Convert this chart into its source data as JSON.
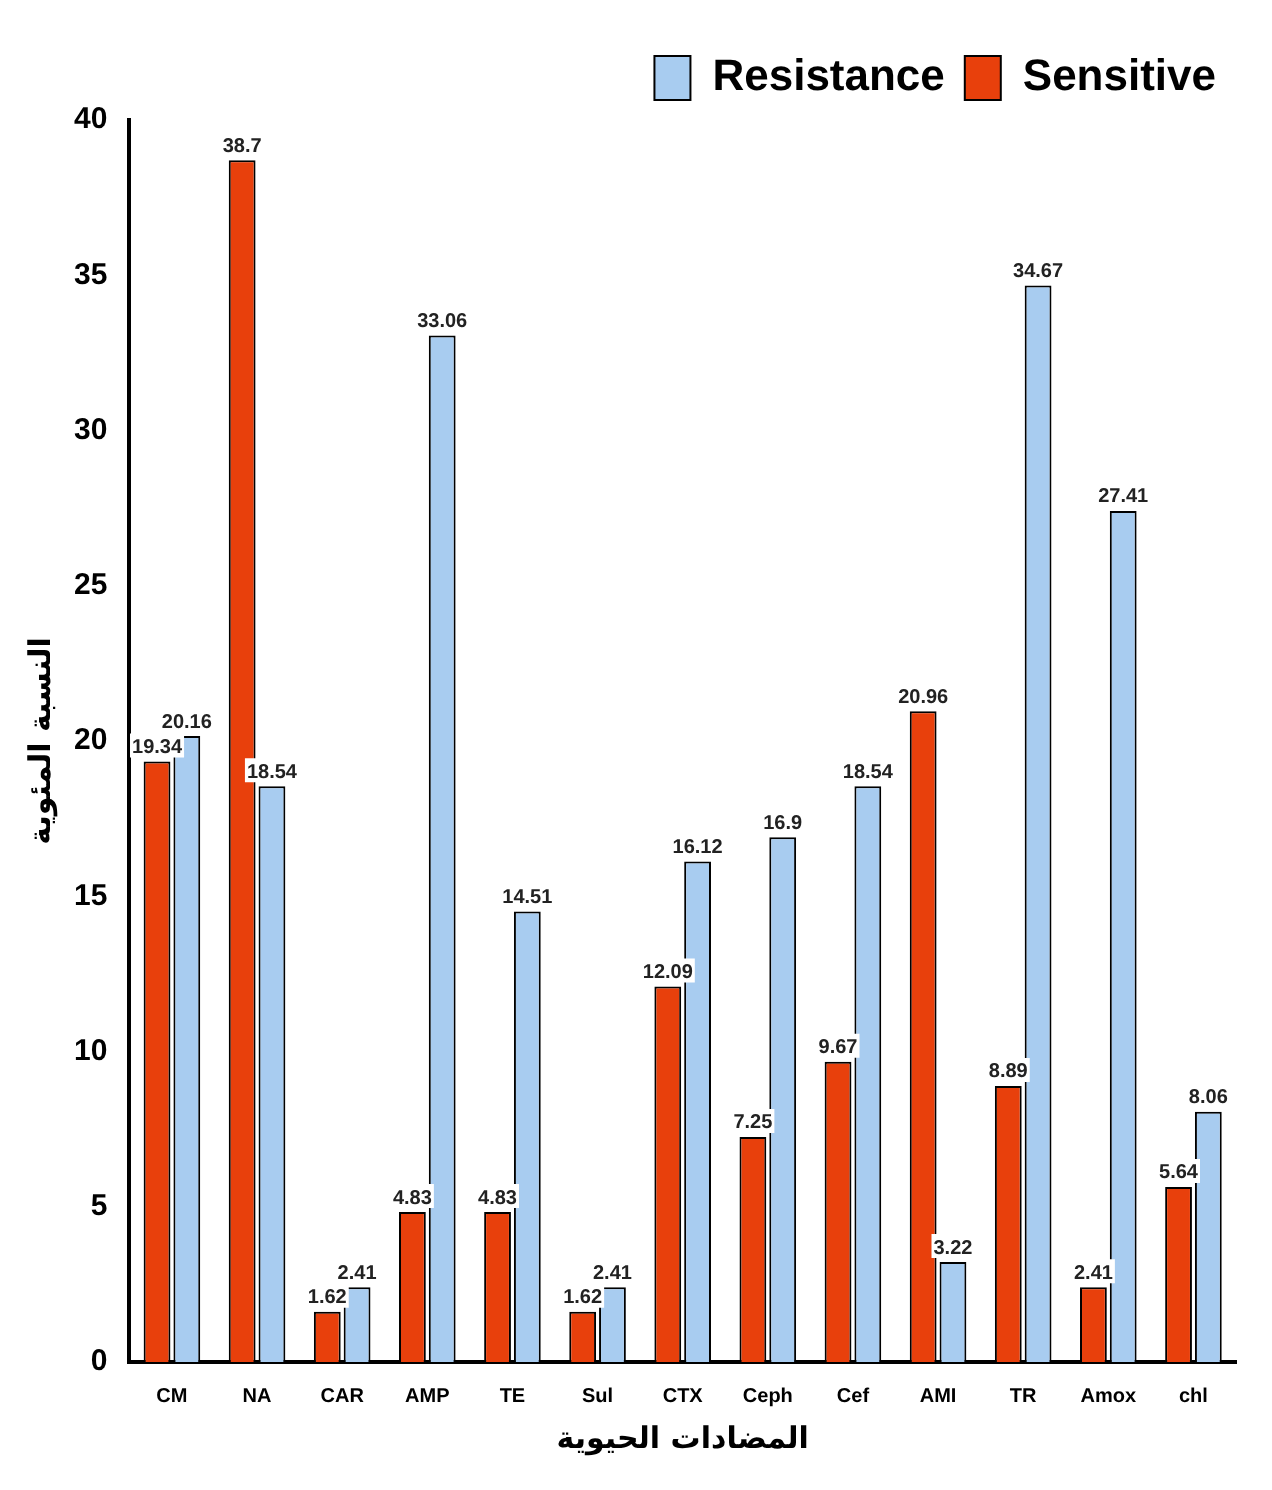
{
  "chart_data": {
    "type": "bar",
    "xlabel": "المضادات الحيوية",
    "ylabel": "النسبة المئوية",
    "categories": [
      "CM",
      "NA",
      "CAR",
      "AMP",
      "TE",
      "Sul",
      "CTX",
      "Ceph",
      "Cef",
      "AMI",
      "TR",
      "Amox",
      "chl"
    ],
    "series": [
      {
        "name": "Sensitive",
        "color": "#e8400c",
        "values": [
          19.34,
          38.7,
          1.62,
          4.83,
          4.83,
          1.62,
          12.09,
          7.25,
          9.67,
          20.96,
          8.89,
          2.41,
          5.64
        ]
      },
      {
        "name": "Resistance",
        "color": "#a8ccf0",
        "values": [
          20.16,
          18.54,
          2.41,
          33.06,
          14.51,
          2.41,
          16.12,
          16.9,
          18.54,
          3.22,
          34.67,
          27.41,
          8.06
        ]
      }
    ],
    "ylim": [
      0,
      40
    ],
    "yticks": [
      0,
      5,
      10,
      15,
      20,
      25,
      30,
      35,
      40
    ],
    "grid": false,
    "legend": "top right",
    "data_labels": true
  }
}
